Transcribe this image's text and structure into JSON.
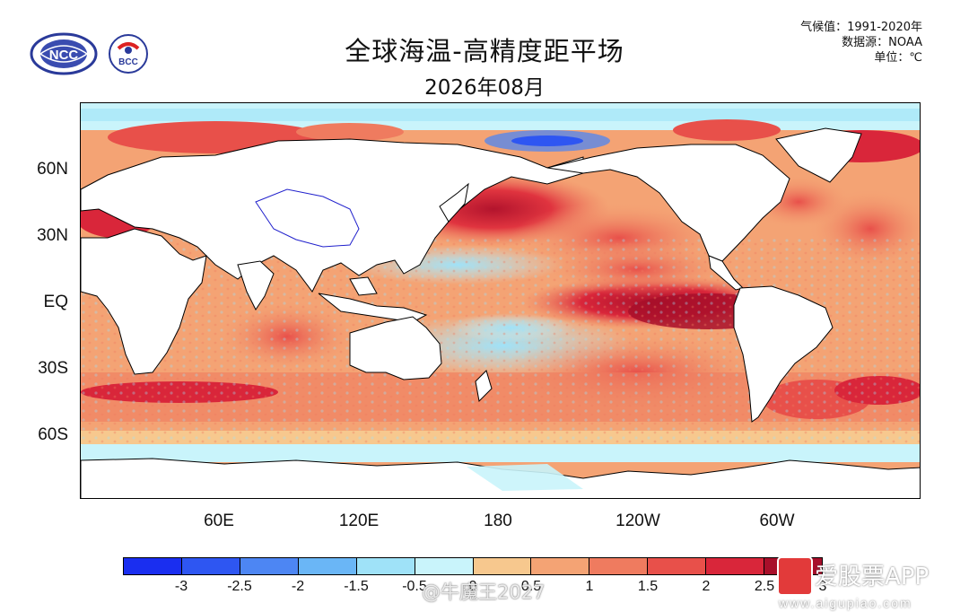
{
  "title": "全球海温-高精度距平场",
  "subtitle": "2026年08月",
  "meta": {
    "climatology": "气候值：1991-2020年",
    "source": "数据源：NOAA",
    "unit": "单位：℃"
  },
  "logos": {
    "ncc_text": "NCC",
    "bcc_text": "BCC"
  },
  "map": {
    "y_ticks": [
      "60N",
      "30N",
      "EQ",
      "30S",
      "60S"
    ],
    "x_ticks": [
      "60E",
      "120E",
      "180",
      "120W",
      "60W"
    ]
  },
  "colorbar": {
    "labels": [
      "-3",
      "-2.5",
      "-2",
      "-1.5",
      "-0.5",
      "0",
      "0.5",
      "1",
      "1.5",
      "2",
      "2.5",
      "3"
    ],
    "colors": [
      "#1a2ef0",
      "#2e56f2",
      "#4d86f3",
      "#6ab6f6",
      "#9fe2f8",
      "#c9f4fb",
      "#f7c88e",
      "#f4a374",
      "#ef7b5f",
      "#e8504a",
      "#d9263a",
      "#a80f2a"
    ]
  },
  "watermark": {
    "weibo": "@牛魔王2027",
    "app_name": "爱股票APP",
    "app_url": "www.aigupiao.com"
  }
}
